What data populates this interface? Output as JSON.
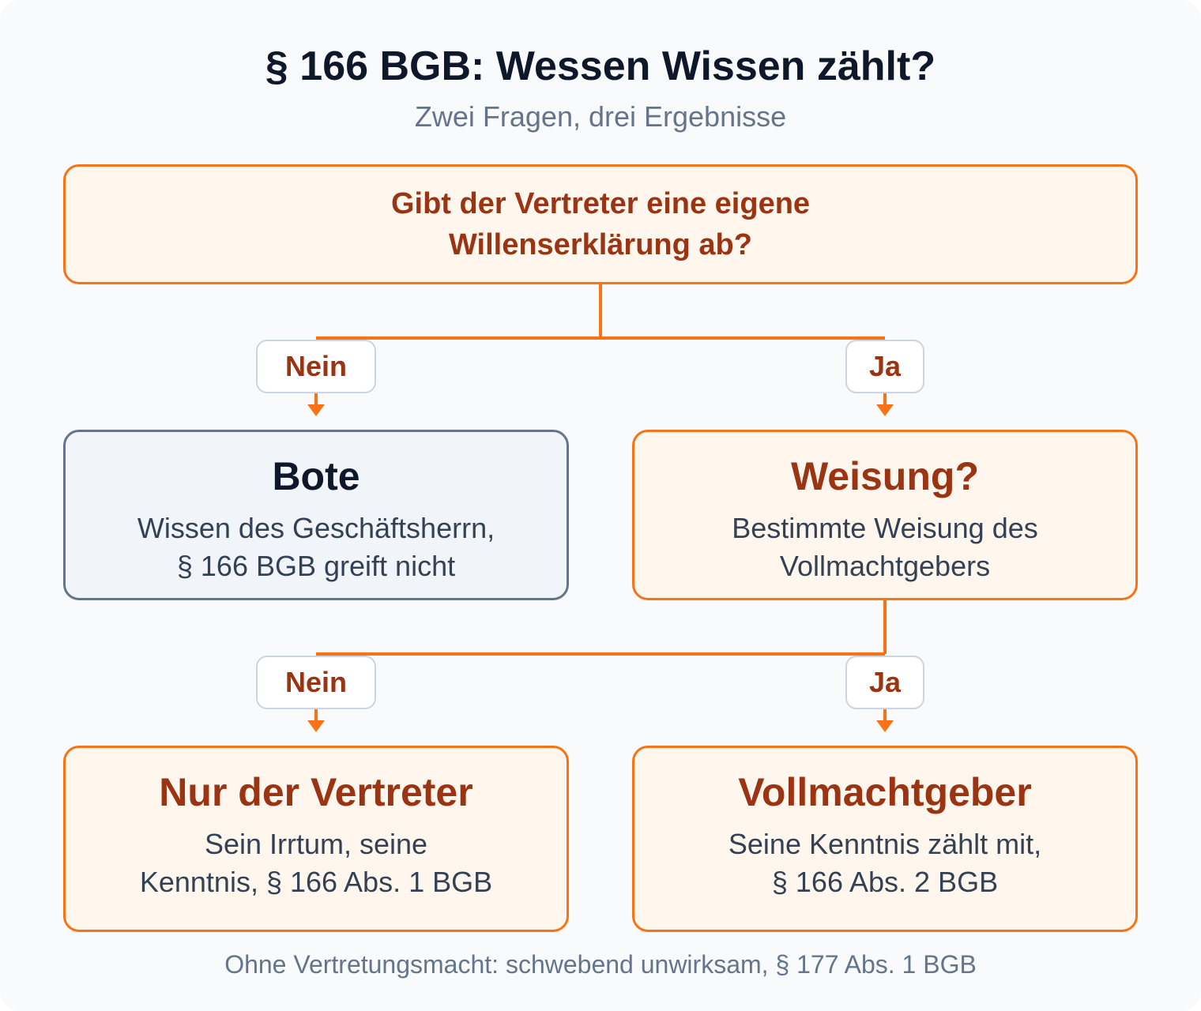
{
  "header": {
    "title": "§ 166 BGB: Wessen Wissen zählt?",
    "subtitle": "Zwei Fragen, drei Ergebnisse"
  },
  "question": {
    "line1": "Gibt der Vertreter eine eigene",
    "line2": "Willenserklärung ab?"
  },
  "branch1": {
    "no_label": "Nein",
    "yes_label": "Ja"
  },
  "bote": {
    "title": "Bote",
    "line1": "Wissen des Geschäftsherrn,",
    "line2": "§ 166 BGB greift nicht"
  },
  "weisung": {
    "title": "Weisung?",
    "line1": "Bestimmte Weisung des",
    "line2": "Vollmachtgebers"
  },
  "branch2": {
    "no_label": "Nein",
    "yes_label": "Ja"
  },
  "vertreter": {
    "title": "Nur der Vertreter",
    "line1": "Sein Irrtum, seine",
    "line2": "Kenntnis, § 166 Abs. 1 BGB"
  },
  "vollmachtgeber": {
    "title": "Vollmachtgeber",
    "line1": "Seine Kenntnis zählt mit,",
    "line2": "§ 166 Abs. 2 BGB"
  },
  "footer": "Ohne Vertretungsmacht: schwebend unwirksam, § 177 Abs. 1 BGB",
  "colors": {
    "accent": "#f97316",
    "accent_text": "#9a3412",
    "accent_fill": "#fff7ed",
    "neutral_border": "#64748b",
    "neutral_fill": "#f1f5f9"
  }
}
